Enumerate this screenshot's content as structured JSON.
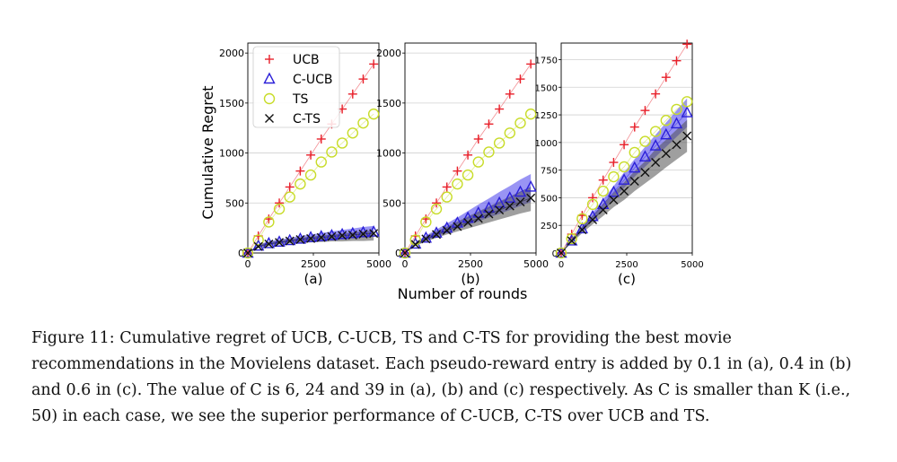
{
  "chart_data": [
    {
      "type": "scatter",
      "panel_label": "(a)",
      "ylabel": "Cumulative Regret",
      "xlim": [
        0,
        5000
      ],
      "ylim": [
        0,
        2100
      ],
      "x_ticks": [
        "0",
        "2500",
        "5000"
      ],
      "y_ticks": [
        "0",
        "500",
        "1000",
        "1500",
        "2000"
      ],
      "grid": true,
      "legend_position": "upper-left",
      "x": [
        0,
        400,
        800,
        1200,
        1600,
        2000,
        2400,
        2800,
        3200,
        3600,
        4000,
        4400,
        4800
      ],
      "series": [
        {
          "name": "UCB",
          "marker": "+",
          "color": "#e8202a",
          "values": [
            0,
            170,
            340,
            500,
            660,
            820,
            980,
            1140,
            1290,
            1440,
            1590,
            1740,
            1890
          ]
        },
        {
          "name": "C-UCB",
          "marker": "triangle",
          "color": "#2b20d8",
          "values": [
            0,
            70,
            95,
            110,
            125,
            140,
            155,
            165,
            175,
            185,
            195,
            205,
            210
          ],
          "band": [
            [
              0,
              0
            ],
            [
              55,
              85
            ],
            [
              80,
              115
            ],
            [
              95,
              135
            ],
            [
              105,
              150
            ],
            [
              115,
              170
            ],
            [
              125,
              185
            ],
            [
              135,
              200
            ],
            [
              140,
              215
            ],
            [
              145,
              230
            ],
            [
              150,
              245
            ],
            [
              155,
              260
            ],
            [
              160,
              270
            ]
          ]
        },
        {
          "name": "TS",
          "marker": "circle",
          "color": "#c8dc28",
          "values": [
            0,
            130,
            310,
            440,
            560,
            690,
            780,
            910,
            1010,
            1100,
            1200,
            1300,
            1390
          ]
        },
        {
          "name": "C-TS",
          "marker": "x",
          "color": "#111111",
          "values": [
            0,
            65,
            90,
            105,
            120,
            135,
            145,
            155,
            165,
            175,
            180,
            190,
            195
          ],
          "band": [
            [
              0,
              0
            ],
            [
              50,
              80
            ],
            [
              70,
              110
            ],
            [
              85,
              125
            ],
            [
              95,
              140
            ],
            [
              100,
              155
            ],
            [
              105,
              165
            ],
            [
              110,
              175
            ],
            [
              115,
              185
            ],
            [
              115,
              195
            ],
            [
              120,
              205
            ],
            [
              120,
              215
            ],
            [
              125,
              225
            ]
          ]
        }
      ]
    },
    {
      "type": "scatter",
      "panel_label": "(b)",
      "xlim": [
        0,
        5000
      ],
      "ylim": [
        0,
        2100
      ],
      "x_ticks": [
        "0",
        "2500",
        "5000"
      ],
      "y_ticks": [
        "0",
        "500",
        "1000",
        "1500",
        "2000"
      ],
      "grid": true,
      "x": [
        0,
        400,
        800,
        1200,
        1600,
        2000,
        2400,
        2800,
        3200,
        3600,
        4000,
        4400,
        4800
      ],
      "series": [
        {
          "name": "UCB",
          "marker": "+",
          "color": "#e8202a",
          "values": [
            0,
            170,
            340,
            500,
            660,
            820,
            980,
            1140,
            1290,
            1440,
            1590,
            1740,
            1890
          ]
        },
        {
          "name": "C-UCB",
          "marker": "triangle",
          "color": "#2b20d8",
          "values": [
            0,
            90,
            150,
            200,
            250,
            300,
            350,
            400,
            450,
            500,
            550,
            610,
            660
          ],
          "band": [
            [
              0,
              0
            ],
            [
              75,
              105
            ],
            [
              125,
              175
            ],
            [
              165,
              235
            ],
            [
              205,
              295
            ],
            [
              245,
              355
            ],
            [
              280,
              420
            ],
            [
              315,
              485
            ],
            [
              355,
              545
            ],
            [
              390,
              610
            ],
            [
              430,
              670
            ],
            [
              470,
              735
            ],
            [
              510,
              790
            ]
          ]
        },
        {
          "name": "TS",
          "marker": "circle",
          "color": "#c8dc28",
          "values": [
            0,
            130,
            310,
            440,
            560,
            690,
            780,
            910,
            1010,
            1100,
            1200,
            1300,
            1390
          ]
        },
        {
          "name": "C-TS",
          "marker": "x",
          "color": "#111111",
          "values": [
            0,
            85,
            140,
            185,
            225,
            265,
            305,
            345,
            390,
            430,
            470,
            510,
            550
          ],
          "band": [
            [
              0,
              0
            ],
            [
              70,
              100
            ],
            [
              115,
              165
            ],
            [
              150,
              220
            ],
            [
              185,
              265
            ],
            [
              215,
              315
            ],
            [
              245,
              365
            ],
            [
              275,
              415
            ],
            [
              305,
              465
            ],
            [
              335,
              515
            ],
            [
              365,
              565
            ],
            [
              395,
              615
            ],
            [
              420,
              660
            ]
          ]
        }
      ]
    },
    {
      "type": "scatter",
      "panel_label": "(c)",
      "xlim": [
        0,
        5000
      ],
      "ylim": [
        0,
        1900
      ],
      "x_ticks": [
        "0",
        "2500",
        "5000"
      ],
      "y_ticks": [
        "0",
        "250",
        "500",
        "750",
        "1000",
        "1250",
        "1500",
        "1750"
      ],
      "grid": true,
      "x": [
        0,
        400,
        800,
        1200,
        1600,
        2000,
        2400,
        2800,
        3200,
        3600,
        4000,
        4400,
        4800
      ],
      "series": [
        {
          "name": "UCB",
          "marker": "+",
          "color": "#e8202a",
          "values": [
            0,
            170,
            340,
            500,
            660,
            820,
            980,
            1140,
            1290,
            1440,
            1590,
            1740,
            1890
          ]
        },
        {
          "name": "C-UCB",
          "marker": "triangle",
          "color": "#2b20d8",
          "values": [
            0,
            110,
            220,
            330,
            440,
            550,
            660,
            770,
            870,
            970,
            1070,
            1170,
            1270
          ],
          "band": [
            [
              0,
              0
            ],
            [
              95,
              125
            ],
            [
              195,
              245
            ],
            [
              295,
              365
            ],
            [
              395,
              485
            ],
            [
              495,
              605
            ],
            [
              590,
              730
            ],
            [
              690,
              850
            ],
            [
              780,
              960
            ],
            [
              870,
              1070
            ],
            [
              960,
              1180
            ],
            [
              1050,
              1290
            ],
            [
              1140,
              1400
            ]
          ]
        },
        {
          "name": "TS",
          "marker": "circle",
          "color": "#c8dc28",
          "values": [
            0,
            130,
            310,
            440,
            560,
            690,
            780,
            910,
            1010,
            1100,
            1200,
            1300,
            1370
          ]
        },
        {
          "name": "C-TS",
          "marker": "x",
          "color": "#111111",
          "values": [
            0,
            110,
            210,
            300,
            390,
            480,
            560,
            650,
            730,
            820,
            900,
            980,
            1060
          ],
          "band": [
            [
              0,
              0
            ],
            [
              90,
              130
            ],
            [
              180,
              240
            ],
            [
              260,
              340
            ],
            [
              335,
              445
            ],
            [
              415,
              545
            ],
            [
              480,
              640
            ],
            [
              560,
              740
            ],
            [
              630,
              830
            ],
            [
              700,
              940
            ],
            [
              775,
              1025
            ],
            [
              845,
              1115
            ],
            [
              915,
              1205
            ]
          ]
        }
      ]
    }
  ],
  "xlabel": "Number of rounds",
  "caption": "Figure 11: Cumulative regret of UCB, C-UCB, TS and C-TS for providing the best movie recommendations in the Movielens dataset. Each pseudo-reward entry is added by 0.1 in (a), 0.4 in (b) and 0.6 in (c). The value of C is 6, 24 and 39 in (a), (b) and (c) respectively. As C is smaller than K (i.e., 50) in each case, we see the superior performance of C-UCB, C-TS over UCB and TS."
}
